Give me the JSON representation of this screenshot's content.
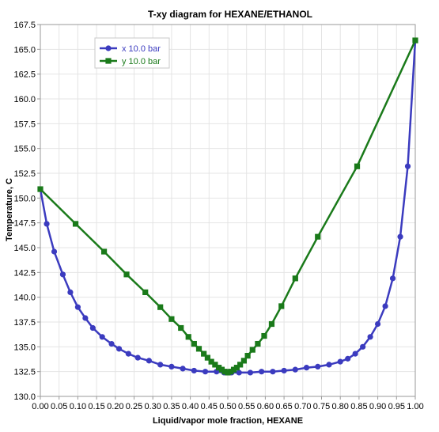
{
  "chart_data": {
    "type": "line",
    "title": "T-xy diagram for HEXANE/ETHANOL",
    "xlabel": "Liquid/vapor mole fraction, HEXANE",
    "ylabel": "Temperature, C",
    "xlim": [
      0,
      1
    ],
    "ylim": [
      130,
      167.5
    ],
    "xticks": [
      "0.00",
      "0.05",
      "0.10",
      "0.15",
      "0.20",
      "0.25",
      "0.30",
      "0.35",
      "0.40",
      "0.45",
      "0.50",
      "0.55",
      "0.60",
      "0.65",
      "0.70",
      "0.75",
      "0.80",
      "0.85",
      "0.90",
      "0.95",
      "1.00"
    ],
    "yticks": [
      "130.0",
      "132.5",
      "135.0",
      "137.5",
      "140.0",
      "142.5",
      "145.0",
      "147.5",
      "150.0",
      "152.5",
      "155.0",
      "157.5",
      "160.0",
      "162.5",
      "165.0",
      "167.5"
    ],
    "grid": true,
    "legend_position": "top-left",
    "series": [
      {
        "name": "x 10.0 bar",
        "color": "#3b3bbf",
        "marker": "circle",
        "points": [
          [
            0.0,
            150.9
          ],
          [
            0.017,
            147.4
          ],
          [
            0.037,
            144.6
          ],
          [
            0.06,
            142.3
          ],
          [
            0.08,
            140.5
          ],
          [
            0.1,
            139.0
          ],
          [
            0.12,
            137.9
          ],
          [
            0.14,
            136.9
          ],
          [
            0.165,
            136.0
          ],
          [
            0.19,
            135.3
          ],
          [
            0.21,
            134.8
          ],
          [
            0.235,
            134.3
          ],
          [
            0.26,
            133.9
          ],
          [
            0.29,
            133.6
          ],
          [
            0.32,
            133.2
          ],
          [
            0.35,
            133.0
          ],
          [
            0.38,
            132.8
          ],
          [
            0.41,
            132.6
          ],
          [
            0.44,
            132.5
          ],
          [
            0.47,
            132.5
          ],
          [
            0.49,
            132.4
          ],
          [
            0.5,
            132.4
          ],
          [
            0.51,
            132.4
          ],
          [
            0.53,
            132.4
          ],
          [
            0.56,
            132.4
          ],
          [
            0.59,
            132.5
          ],
          [
            0.62,
            132.5
          ],
          [
            0.65,
            132.6
          ],
          [
            0.68,
            132.7
          ],
          [
            0.71,
            132.9
          ],
          [
            0.74,
            133.0
          ],
          [
            0.77,
            133.2
          ],
          [
            0.8,
            133.5
          ],
          [
            0.82,
            133.8
          ],
          [
            0.84,
            134.3
          ],
          [
            0.86,
            135.0
          ],
          [
            0.88,
            136.0
          ],
          [
            0.9,
            137.3
          ],
          [
            0.92,
            139.1
          ],
          [
            0.94,
            141.9
          ],
          [
            0.96,
            146.1
          ],
          [
            0.98,
            153.2
          ],
          [
            1.0,
            165.9
          ]
        ]
      },
      {
        "name": "y 10.0 bar",
        "color": "#1a7a1a",
        "marker": "square",
        "points": [
          [
            0.0,
            150.9
          ],
          [
            0.094,
            147.4
          ],
          [
            0.17,
            144.6
          ],
          [
            0.23,
            142.3
          ],
          [
            0.28,
            140.5
          ],
          [
            0.32,
            139.0
          ],
          [
            0.35,
            137.8
          ],
          [
            0.375,
            136.9
          ],
          [
            0.395,
            136.0
          ],
          [
            0.41,
            135.3
          ],
          [
            0.423,
            134.8
          ],
          [
            0.436,
            134.3
          ],
          [
            0.446,
            133.9
          ],
          [
            0.456,
            133.5
          ],
          [
            0.466,
            133.2
          ],
          [
            0.476,
            132.9
          ],
          [
            0.484,
            132.7
          ],
          [
            0.492,
            132.5
          ],
          [
            0.5,
            132.4
          ],
          [
            0.508,
            132.5
          ],
          [
            0.516,
            132.7
          ],
          [
            0.524,
            132.9
          ],
          [
            0.533,
            133.2
          ],
          [
            0.543,
            133.6
          ],
          [
            0.553,
            134.1
          ],
          [
            0.566,
            134.7
          ],
          [
            0.58,
            135.3
          ],
          [
            0.597,
            136.1
          ],
          [
            0.617,
            137.3
          ],
          [
            0.643,
            139.1
          ],
          [
            0.68,
            141.9
          ],
          [
            0.74,
            146.1
          ],
          [
            0.845,
            153.2
          ],
          [
            1.0,
            165.9
          ]
        ]
      }
    ]
  }
}
